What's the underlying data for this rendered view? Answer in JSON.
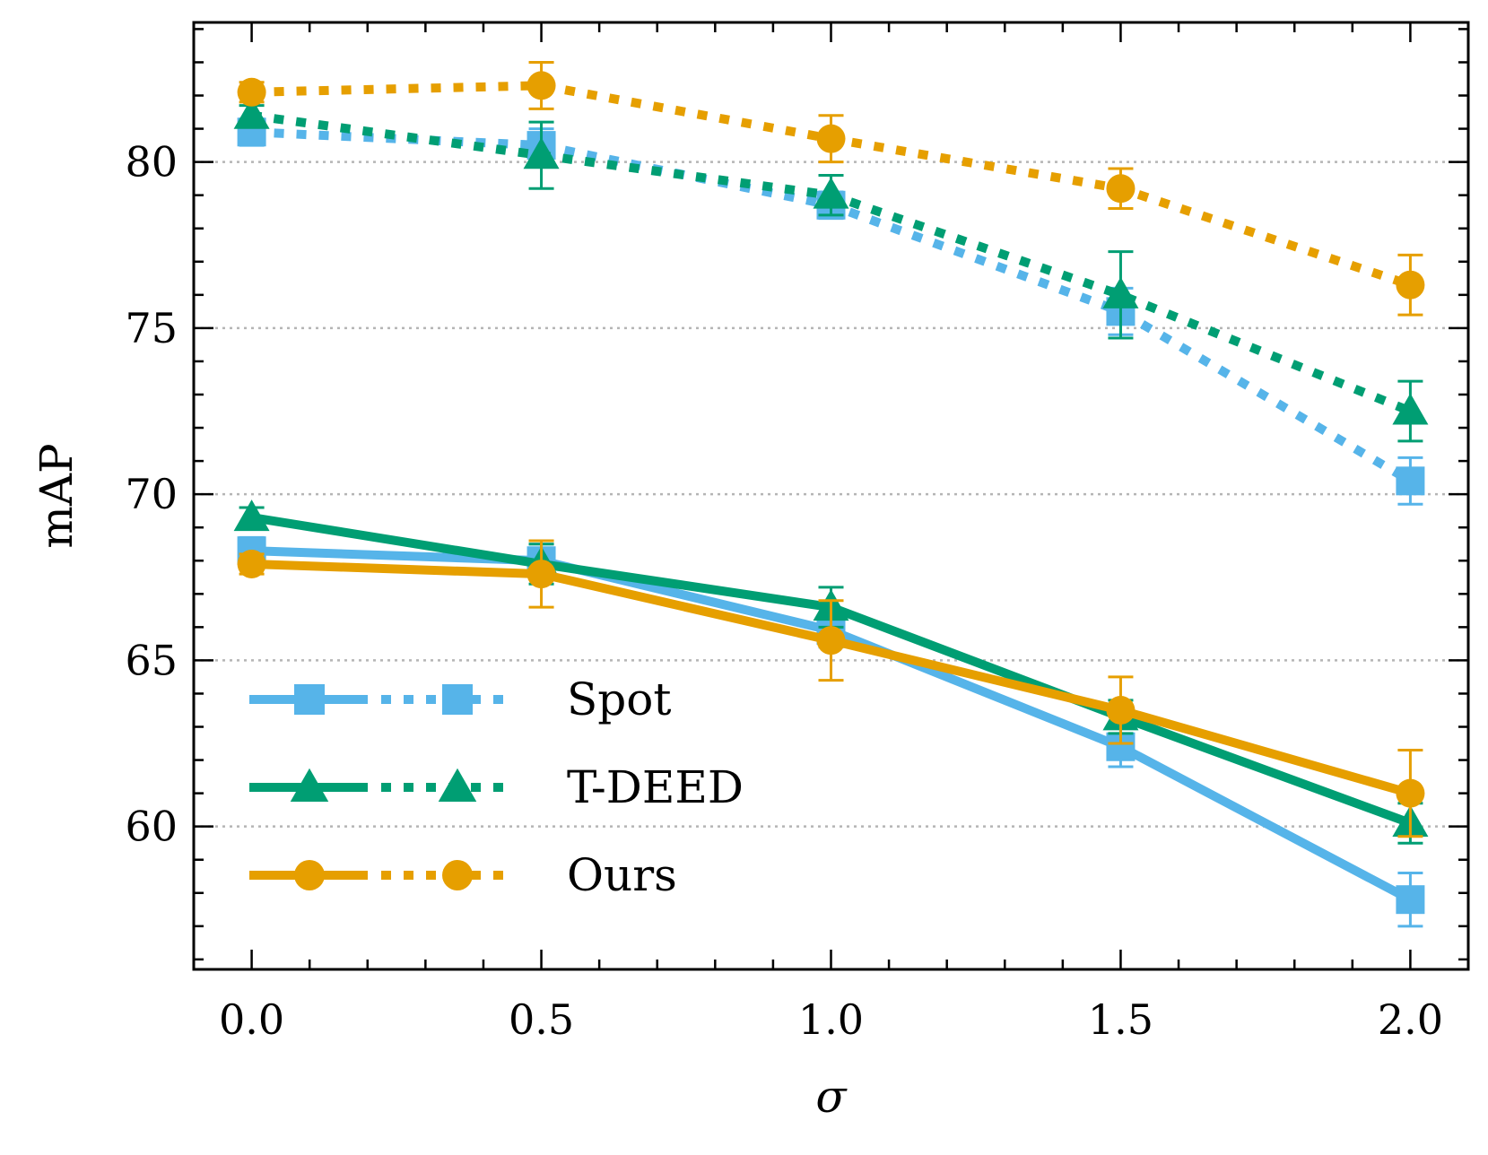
{
  "chart_data": {
    "type": "line",
    "title": "",
    "xlabel": "σ",
    "ylabel": "mAP",
    "x": [
      0.0,
      0.5,
      1.0,
      1.5,
      2.0
    ],
    "xticks": [
      "0.0",
      "0.5",
      "1.0",
      "1.5",
      "2.0"
    ],
    "yticks": [
      60,
      65,
      70,
      75,
      80
    ],
    "xlim": [
      -0.1,
      2.1
    ],
    "ylim": [
      55.7,
      84.2
    ],
    "grid": "horizontal dotted",
    "legend_position": "lower-left",
    "legend_note": "solid line and dotted line per method",
    "series": [
      {
        "name": "Spot",
        "variant": "solid",
        "color": "#56B4E9",
        "marker": "square",
        "values": [
          68.3,
          68.0,
          65.9,
          62.4,
          57.8
        ],
        "err": [
          0.4,
          0.5,
          0.5,
          0.6,
          0.8
        ]
      },
      {
        "name": "Spot",
        "variant": "dotted",
        "color": "#56B4E9",
        "marker": "square",
        "values": [
          80.9,
          80.5,
          78.7,
          75.5,
          70.4
        ],
        "err": [
          0.4,
          0.5,
          0.4,
          0.7,
          0.7
        ]
      },
      {
        "name": "T-DEED",
        "variant": "solid",
        "color": "#009E73",
        "marker": "triangle",
        "values": [
          69.3,
          67.9,
          66.6,
          63.3,
          60.1
        ],
        "err": [
          0.3,
          0.6,
          0.6,
          0.5,
          0.6
        ]
      },
      {
        "name": "T-DEED",
        "variant": "dotted",
        "color": "#009E73",
        "marker": "triangle",
        "values": [
          81.4,
          80.2,
          79.0,
          76.0,
          72.5
        ],
        "err": [
          0.3,
          1.0,
          0.6,
          1.3,
          0.9
        ]
      },
      {
        "name": "Ours",
        "variant": "solid",
        "color": "#E69F00",
        "marker": "circle",
        "values": [
          67.9,
          67.6,
          65.6,
          63.5,
          61.0
        ],
        "err": [
          0.3,
          1.0,
          1.2,
          1.0,
          1.3
        ]
      },
      {
        "name": "Ours",
        "variant": "dotted",
        "color": "#E69F00",
        "marker": "circle",
        "values": [
          82.1,
          82.3,
          80.7,
          79.2,
          76.3
        ],
        "err": [
          0.3,
          0.7,
          0.7,
          0.6,
          0.9
        ]
      }
    ],
    "legend": [
      {
        "label": "Spot",
        "color": "#56B4E9",
        "marker": "square"
      },
      {
        "label": "T-DEED",
        "color": "#009E73",
        "marker": "triangle"
      },
      {
        "label": "Ours",
        "color": "#E69F00",
        "marker": "circle"
      }
    ]
  }
}
